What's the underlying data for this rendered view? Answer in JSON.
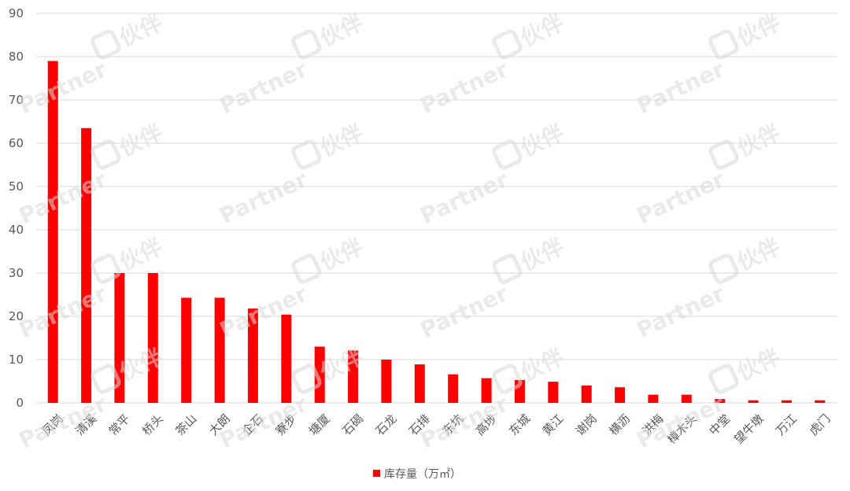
{
  "chart_data": {
    "type": "bar",
    "categories": [
      "凤岗",
      "清溪",
      "常平",
      "桥头",
      "茶山",
      "大朗",
      "企石",
      "寮步",
      "塘厦",
      "石碣",
      "石龙",
      "石排",
      "东坑",
      "高埗",
      "东城",
      "黄江",
      "谢岗",
      "横沥",
      "洪梅",
      "樟木头",
      "中堂",
      "望牛墩",
      "万江",
      "虎门"
    ],
    "series": [
      {
        "name": "库存量（万㎡）",
        "values": [
          79,
          63.5,
          30,
          30,
          24.3,
          24.3,
          21.8,
          20.4,
          13,
          12.1,
          10,
          8.9,
          6.6,
          5.7,
          5.3,
          4.9,
          4,
          3.6,
          1.9,
          1.9,
          0.9,
          0.6,
          0.6,
          0.6
        ]
      }
    ],
    "yticks": [
      "0",
      "10",
      "20",
      "30",
      "40",
      "50",
      "60",
      "70",
      "80",
      "90"
    ],
    "ylim": [
      0,
      90
    ],
    "grid": true,
    "legend_position": "bottom",
    "colors": {
      "bar": "#ff0000",
      "grid": "#d9d9d9",
      "text": "#595959"
    }
  },
  "watermark": {
    "latin": "Partner",
    "cjk": "伙伴"
  }
}
